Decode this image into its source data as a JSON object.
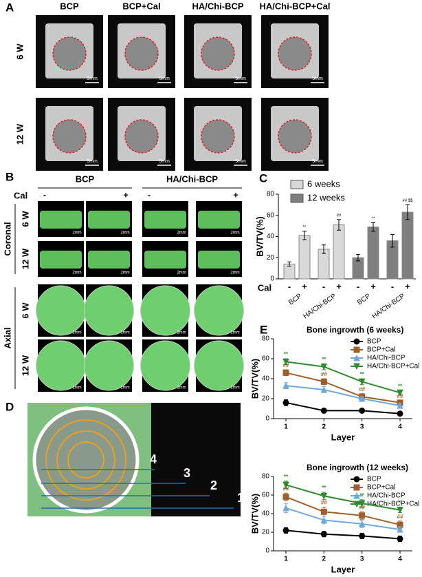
{
  "panel_a": {
    "letter": "A",
    "columns": [
      "BCP",
      "BCP+Cal",
      "HA/Chi-BCP",
      "HA/Chi-BCP+Cal"
    ],
    "rows": [
      "6 W",
      "12 W"
    ],
    "scale_bar": "5mm"
  },
  "panel_b": {
    "letter": "B",
    "groups": [
      "BCP",
      "HA/Chi-BCP"
    ],
    "treatment": "Cal",
    "signs": [
      "-",
      "+"
    ],
    "views": [
      "Coronal",
      "Axial"
    ],
    "rows": [
      "6 W",
      "12 W"
    ],
    "scale_bars": [
      "2mm",
      "1mm"
    ]
  },
  "panel_d": {
    "letter": "D",
    "layers": [
      "1",
      "2",
      "3",
      "4"
    ]
  },
  "chart_data": [
    {
      "type": "bar",
      "panel": "C",
      "ylabel": "BV/TV(%)",
      "ylim": [
        0,
        80
      ],
      "yticks": [
        0,
        20,
        40,
        60,
        80
      ],
      "categories": [
        "-",
        "+",
        "-",
        "+"
      ],
      "groups": [
        "BCP",
        "HA/Chi-BCP"
      ],
      "treatment": "Cal",
      "series": [
        {
          "name": "6 weeks",
          "color": "#d9d9d9",
          "values": [
            14,
            41,
            28,
            51
          ],
          "errors": [
            2,
            4,
            4,
            5
          ],
          "significance": [
            null,
            "**",
            null,
            "##"
          ]
        },
        {
          "name": "12 weeks",
          "color": "#7f7f7f",
          "values": [
            20,
            49,
            36,
            63
          ],
          "errors": [
            3,
            4,
            6,
            7
          ],
          "significance": [
            null,
            "**",
            null,
            "## $$"
          ]
        }
      ]
    },
    {
      "type": "line",
      "panel": "E",
      "title": "Bone ingrowth (6 weeks)",
      "xlabel": "Layer",
      "ylabel": "BV/TV(%)",
      "categories": [
        "1",
        "2",
        "3",
        "4"
      ],
      "ylim": [
        0,
        80
      ],
      "yticks": [
        0,
        20,
        40,
        60,
        80
      ],
      "series": [
        {
          "name": "BCP",
          "color": "#000000",
          "values": [
            16,
            8,
            8,
            5
          ],
          "errors": [
            3,
            2,
            2,
            2
          ]
        },
        {
          "name": "BCP+Cal",
          "color": "#a0602a",
          "values": [
            46,
            37,
            22,
            16
          ],
          "errors": [
            3,
            3,
            3,
            2
          ],
          "significance": [
            "##",
            "##",
            "##",
            "##"
          ]
        },
        {
          "name": "HA/Chi-BCP",
          "color": "#6fa8dc",
          "values": [
            33,
            29,
            20,
            13
          ],
          "errors": [
            3,
            3,
            2,
            2
          ]
        },
        {
          "name": "HA/Chi-BCP+Cal",
          "color": "#2e8b2e",
          "values": [
            57,
            52,
            37,
            26
          ],
          "errors": [
            3,
            3,
            3,
            2
          ],
          "significance": [
            "**",
            "**",
            "**",
            "**"
          ]
        }
      ]
    },
    {
      "type": "line",
      "title": "Bone ingrowth (12 weeks)",
      "xlabel": "Layer",
      "ylabel": "BV/TV(%)",
      "categories": [
        "1",
        "2",
        "3",
        "4"
      ],
      "ylim": [
        0,
        80
      ],
      "yticks": [
        0,
        20,
        40,
        60,
        80
      ],
      "series": [
        {
          "name": "BCP",
          "color": "#000000",
          "values": [
            22,
            18,
            16,
            13
          ],
          "errors": [
            3,
            3,
            3,
            3
          ]
        },
        {
          "name": "BCP+Cal",
          "color": "#a0602a",
          "values": [
            58,
            42,
            38,
            28
          ],
          "errors": [
            4,
            5,
            4,
            4
          ],
          "significance": [
            "##",
            "##",
            "##",
            "##"
          ]
        },
        {
          "name": "HA/Chi-BCP",
          "color": "#6fa8dc",
          "values": [
            46,
            33,
            29,
            23
          ],
          "errors": [
            5,
            4,
            4,
            3
          ]
        },
        {
          "name": "HA/Chi-BCP+Cal",
          "color": "#2e8b2e",
          "values": [
            71,
            59,
            51,
            44
          ],
          "errors": [
            4,
            4,
            4,
            3
          ],
          "significance": [
            "**",
            "**",
            "**",
            "**"
          ]
        }
      ]
    }
  ]
}
